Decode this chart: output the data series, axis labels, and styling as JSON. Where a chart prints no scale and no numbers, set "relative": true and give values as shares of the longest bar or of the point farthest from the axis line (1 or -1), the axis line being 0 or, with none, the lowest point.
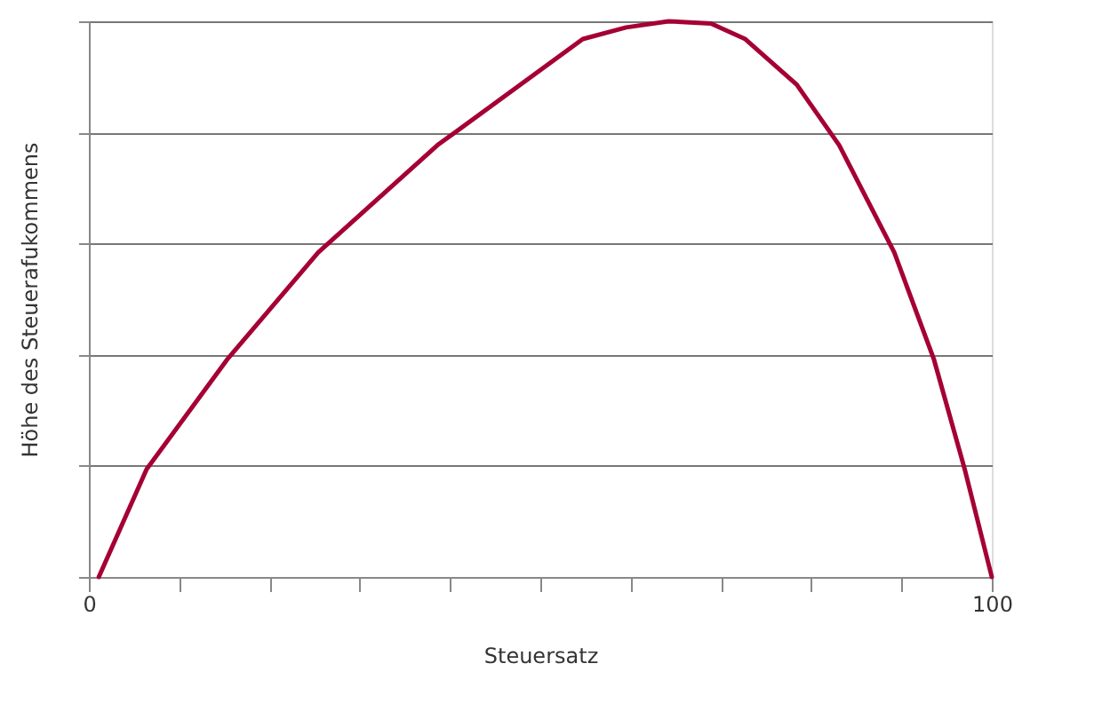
{
  "chart_data": {
    "type": "line",
    "relative": true,
    "xlabel": "Steuersatz",
    "ylabel": "Höhe des Steuerafukommens",
    "xlim": [
      0,
      100
    ],
    "xticks": [
      0,
      {
        "value": 10,
        "label": null
      },
      {
        "value": 20,
        "label": null
      },
      {
        "value": 30,
        "label": null
      },
      {
        "value": 40,
        "label": null
      },
      {
        "value": 50,
        "label": null
      },
      {
        "value": 60,
        "label": null
      },
      {
        "value": 70,
        "label": null
      },
      {
        "value": 80,
        "label": null
      },
      {
        "value": 90,
        "label": null
      },
      100
    ],
    "grid": "y",
    "marker": "none",
    "line_style": "solid",
    "series": [
      {
        "color": "#a50034",
        "x": [
          1.1,
          6.4,
          15.3,
          25.4,
          38.6,
          54.7,
          59.5,
          64.2,
          68.9,
          72.7,
          78.4,
          83.1,
          89.2,
          93.6,
          97.0,
          100
        ],
        "values": [
          0,
          0.194,
          0.391,
          0.584,
          0.777,
          0.968,
          0.989,
          1,
          0.996,
          0.968,
          0.886,
          0.777,
          0.584,
          0.391,
          0.194,
          0
        ]
      }
    ]
  }
}
